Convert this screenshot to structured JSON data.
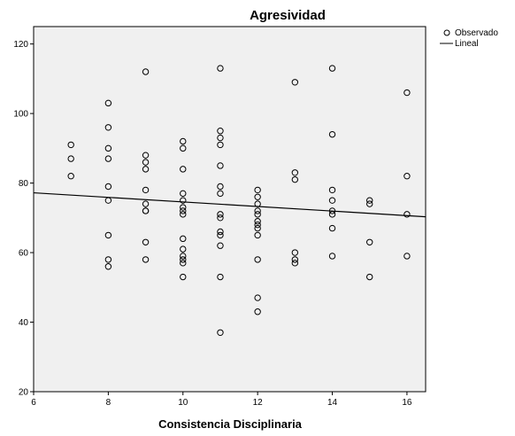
{
  "chart_data": {
    "type": "scatter",
    "title": "Agresividad",
    "xlabel": "Consistencia Disciplinaria",
    "ylabel": "",
    "xlim": [
      6,
      16.5
    ],
    "ylim": [
      20,
      125
    ],
    "xticks": [
      6,
      8,
      10,
      12,
      14,
      16
    ],
    "yticks": [
      20,
      40,
      60,
      80,
      100,
      120
    ],
    "grid": false,
    "legend_position": "top-right",
    "colors": {
      "plot_background": "#f0f0f0",
      "marker": "#000000",
      "fit_line": "#000000"
    },
    "series": [
      {
        "name": "Observado",
        "kind": "points",
        "points": [
          [
            7,
            91
          ],
          [
            7,
            87
          ],
          [
            7,
            82
          ],
          [
            8,
            103
          ],
          [
            8,
            96
          ],
          [
            8,
            90
          ],
          [
            8,
            87
          ],
          [
            8,
            79
          ],
          [
            8,
            75
          ],
          [
            8,
            65
          ],
          [
            8,
            58
          ],
          [
            8,
            56
          ],
          [
            9,
            112
          ],
          [
            9,
            88
          ],
          [
            9,
            86
          ],
          [
            9,
            84
          ],
          [
            9,
            78
          ],
          [
            9,
            74
          ],
          [
            9,
            72
          ],
          [
            9,
            72
          ],
          [
            9,
            63
          ],
          [
            9,
            58
          ],
          [
            10,
            92
          ],
          [
            10,
            90
          ],
          [
            10,
            84
          ],
          [
            10,
            77
          ],
          [
            10,
            75
          ],
          [
            10,
            73
          ],
          [
            10,
            72
          ],
          [
            10,
            71
          ],
          [
            10,
            64
          ],
          [
            10,
            61
          ],
          [
            10,
            59
          ],
          [
            10,
            58
          ],
          [
            10,
            57
          ],
          [
            10,
            53
          ],
          [
            11,
            113
          ],
          [
            11,
            95
          ],
          [
            11,
            93
          ],
          [
            11,
            91
          ],
          [
            11,
            85
          ],
          [
            11,
            79
          ],
          [
            11,
            77
          ],
          [
            11,
            71
          ],
          [
            11,
            70
          ],
          [
            11,
            66
          ],
          [
            11,
            65
          ],
          [
            11,
            62
          ],
          [
            11,
            53
          ],
          [
            11,
            37
          ],
          [
            12,
            78
          ],
          [
            12,
            76
          ],
          [
            12,
            74
          ],
          [
            12,
            72
          ],
          [
            12,
            71
          ],
          [
            12,
            69
          ],
          [
            12,
            68
          ],
          [
            12,
            67
          ],
          [
            12,
            65
          ],
          [
            12,
            58
          ],
          [
            12,
            47
          ],
          [
            12,
            43
          ],
          [
            13,
            109
          ],
          [
            13,
            83
          ],
          [
            13,
            81
          ],
          [
            13,
            60
          ],
          [
            13,
            58
          ],
          [
            13,
            57
          ],
          [
            14,
            113
          ],
          [
            14,
            94
          ],
          [
            14,
            78
          ],
          [
            14,
            75
          ],
          [
            14,
            72
          ],
          [
            14,
            71
          ],
          [
            14,
            67
          ],
          [
            14,
            59
          ],
          [
            15,
            75
          ],
          [
            15,
            74
          ],
          [
            15,
            63
          ],
          [
            15,
            53
          ],
          [
            16,
            106
          ],
          [
            16,
            82
          ],
          [
            16,
            71
          ],
          [
            16,
            59
          ]
        ]
      },
      {
        "name": "Lineal",
        "kind": "line",
        "points": [
          [
            6,
            77.2
          ],
          [
            16.5,
            70.3
          ]
        ]
      }
    ]
  }
}
